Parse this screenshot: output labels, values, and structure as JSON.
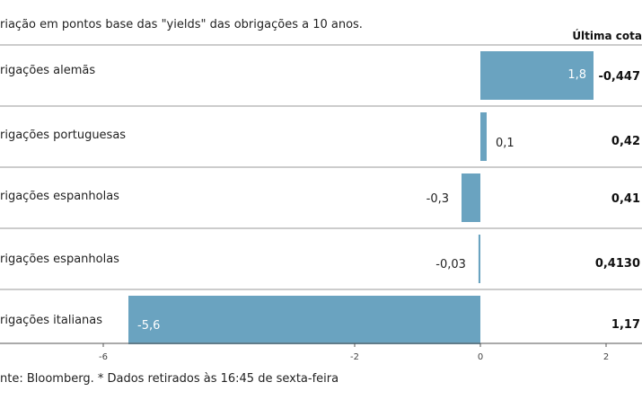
{
  "chart_data": {
    "type": "bar",
    "orientation": "horizontal",
    "subtitle": "riação em pontos base das \"yields\" das obrigações a 10 anos.",
    "last_quote_header": "Última cota",
    "categories": [
      "rigações alemãs",
      "rigações portuguesas",
      "rigações espanholas",
      "rigações espanholas",
      "rigações italianas"
    ],
    "values": [
      1.8,
      0.1,
      -0.3,
      -0.03,
      -5.6
    ],
    "value_labels": [
      "1,8",
      "0,1",
      "-0,3",
      "-0,03",
      "-5,6"
    ],
    "last_quotes": [
      "-0,447",
      "0,42",
      "0,41",
      "0,4130",
      "1,17"
    ],
    "x_ticks": [
      -6,
      -2,
      0,
      2
    ],
    "x_tick_labels": [
      "-6",
      "-2",
      "0",
      "2"
    ],
    "xlim": [
      -6.3,
      2.6
    ],
    "grid": false,
    "bar_color": "#6aa3c0",
    "source": "nte: Bloomberg.  * Dados retirados às 16:45 de sexta-feira"
  }
}
